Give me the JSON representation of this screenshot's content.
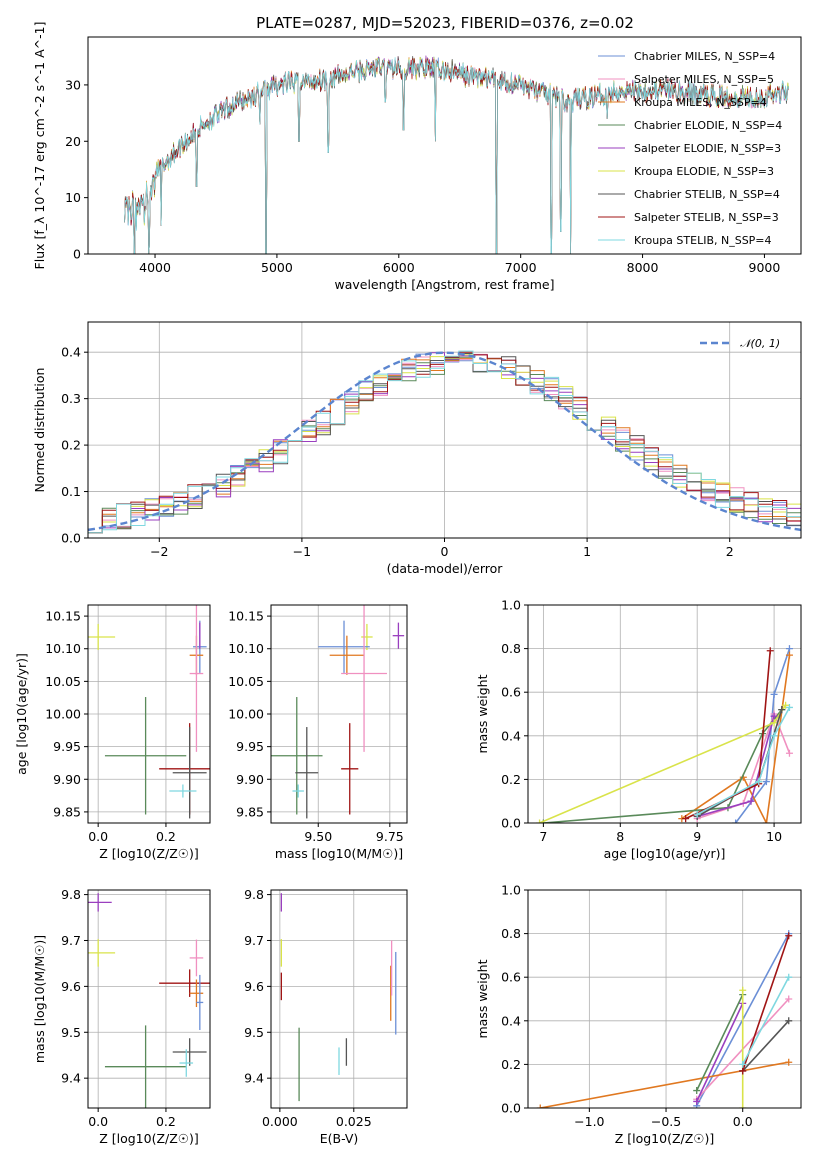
{
  "figure": {
    "title": "PLATE=0287, MJD=52023, FIBERID=0376, z=0.02"
  },
  "colors": {
    "Chabrier MILES": "#6b8fd6",
    "Salpeter MILES": "#f090c0",
    "Kroupa MILES": "#e07820",
    "Chabrier ELODIE": "#5a8a5a",
    "Salpeter ELODIE": "#9a3fbf",
    "Kroupa ELODIE": "#d9e34a",
    "Chabrier STELIB": "#555555",
    "Salpeter STELIB": "#a01515",
    "Kroupa STELIB": "#7fd8e0"
  },
  "chart_data": [
    {
      "id": "spectrum",
      "type": "line",
      "xlabel": "wavelength [Angstrom, rest frame]",
      "ylabel": "Flux [f_λ 10^-17 erg cm^-2 s^-1 A^-1]",
      "xlim": [
        3450,
        9300
      ],
      "ylim": [
        0,
        38.5
      ],
      "xticks": [
        4000,
        5000,
        6000,
        7000,
        8000,
        9000
      ],
      "yticks": [
        0,
        10,
        20,
        30
      ],
      "grid": false,
      "legend_position": "right",
      "legend": [
        "Chabrier MILES, N_SSP=4",
        "Salpeter MILES, N_SSP=5",
        "Kroupa MILES, N_SSP=4",
        "Chabrier ELODIE, N_SSP=4",
        "Salpeter ELODIE, N_SSP=3",
        "Kroupa ELODIE, N_SSP=3",
        "Chabrier STELIB, N_SSP=4",
        "Salpeter STELIB, N_SSP=3",
        "Kroupa STELIB, N_SSP=4"
      ],
      "continuum": [
        [
          3750,
          10
        ],
        [
          3900,
          10.5
        ],
        [
          4000,
          14
        ],
        [
          4200,
          19
        ],
        [
          4400,
          23
        ],
        [
          4600,
          26
        ],
        [
          4800,
          28
        ],
        [
          5000,
          30
        ],
        [
          5200,
          30.5
        ],
        [
          5400,
          31
        ],
        [
          5600,
          32
        ],
        [
          5800,
          33
        ],
        [
          6000,
          33
        ],
        [
          6200,
          33
        ],
        [
          6400,
          32.5
        ],
        [
          6600,
          31.5
        ],
        [
          6800,
          31
        ],
        [
          7000,
          30
        ],
        [
          7200,
          28.5
        ],
        [
          7400,
          27
        ],
        [
          7600,
          28
        ],
        [
          7800,
          29
        ],
        [
          8000,
          29
        ],
        [
          8200,
          29
        ],
        [
          8400,
          28.5
        ],
        [
          8600,
          28
        ],
        [
          8800,
          28
        ],
        [
          9000,
          28
        ],
        [
          9200,
          29
        ]
      ],
      "dips": [
        [
          3830,
          0
        ],
        [
          3950,
          2
        ],
        [
          4050,
          5
        ],
        [
          4340,
          12
        ],
        [
          4860,
          23
        ],
        [
          4910,
          0
        ],
        [
          5180,
          20
        ],
        [
          5420,
          18
        ],
        [
          5890,
          27
        ],
        [
          6040,
          22
        ],
        [
          6300,
          20
        ],
        [
          6800,
          0
        ],
        [
          7250,
          0
        ],
        [
          7330,
          4
        ],
        [
          7410,
          0
        ],
        [
          7710,
          24
        ]
      ]
    },
    {
      "id": "residuals",
      "type": "step",
      "xlabel": "(data-model)/error",
      "ylabel": "Normed distribution",
      "xlim": [
        -2.5,
        2.5
      ],
      "ylim": [
        0,
        0.465
      ],
      "xticks": [
        -2,
        -1,
        0,
        1,
        2
      ],
      "yticks": [
        0.0,
        0.1,
        0.2,
        0.3,
        0.4
      ],
      "grid": true,
      "legend_position": "top-right",
      "legend": [
        "𝒩(0, 1)"
      ],
      "reference": {
        "mu": 0,
        "sigma": 1,
        "color": "#5b85cf"
      }
    },
    {
      "id": "age-vs-Z",
      "type": "errorbar",
      "xlabel": "Z [log10(Z/Z☉)]",
      "ylabel": "age [log10(age/yr)]",
      "xlim": [
        -0.03,
        0.33
      ],
      "ylim": [
        9.833,
        10.167
      ],
      "xticks": [
        0.0,
        0.2
      ],
      "yticks": [
        9.85,
        9.9,
        9.95,
        10.0,
        10.05,
        10.1,
        10.15
      ],
      "grid": true,
      "points": [
        {
          "model": "Kroupa ELODIE",
          "x": 0.0,
          "xerr": 0.05,
          "y": 10.118,
          "yerr": 0.02
        },
        {
          "model": "Chabrier ELODIE",
          "x": 0.14,
          "xerr": 0.12,
          "y": 9.936,
          "yerr": 0.09
        },
        {
          "model": "Salpeter STELIB",
          "x": 0.27,
          "xerr": 0.09,
          "y": 9.916,
          "yerr": 0.07
        },
        {
          "model": "Chabrier STELIB",
          "x": 0.27,
          "xerr": 0.05,
          "y": 9.91,
          "yerr": 0.07
        },
        {
          "model": "Kroupa STELIB",
          "x": 0.25,
          "xerr": 0.04,
          "y": 9.882,
          "yerr": 0.01
        },
        {
          "model": "Chabrier MILES",
          "x": 0.3,
          "xerr": 0.02,
          "y": 10.103,
          "yerr": 0.04
        },
        {
          "model": "Kroupa MILES",
          "x": 0.29,
          "xerr": 0.02,
          "y": 10.09,
          "yerr": 0.03
        },
        {
          "model": "Salpeter MILES",
          "x": 0.29,
          "xerr": 0.02,
          "y": 10.062,
          "yerr": 0.12
        },
        {
          "model": "Salpeter ELODIE",
          "x": 0.3,
          "xerr": 0.0,
          "y": 10.12,
          "yerr": 0.02
        }
      ]
    },
    {
      "id": "age-vs-mass",
      "type": "errorbar",
      "xlabel": "mass [log10(M/M☉)]",
      "ylabel": "",
      "xlim": [
        9.335,
        9.81
      ],
      "ylim": [
        9.833,
        10.167
      ],
      "xticks": [
        9.5,
        9.75
      ],
      "yticks": [
        9.85,
        9.9,
        9.95,
        10.0,
        10.05,
        10.1,
        10.15
      ],
      "grid": true,
      "points": [
        {
          "model": "Kroupa ELODIE",
          "x": 9.67,
          "xerr": 0.02,
          "y": 10.118,
          "yerr": 0.02
        },
        {
          "model": "Chabrier ELODIE",
          "x": 9.425,
          "xerr": 0.09,
          "y": 9.936,
          "yerr": 0.09
        },
        {
          "model": "Salpeter STELIB",
          "x": 9.61,
          "xerr": 0.03,
          "y": 9.916,
          "yerr": 0.07
        },
        {
          "model": "Chabrier STELIB",
          "x": 9.46,
          "xerr": 0.04,
          "y": 9.91,
          "yerr": 0.07
        },
        {
          "model": "Kroupa STELIB",
          "x": 9.43,
          "xerr": 0.02,
          "y": 9.882,
          "yerr": 0.01
        },
        {
          "model": "Chabrier MILES",
          "x": 9.59,
          "xerr": 0.09,
          "y": 10.103,
          "yerr": 0.04
        },
        {
          "model": "Kroupa MILES",
          "x": 9.6,
          "xerr": 0.06,
          "y": 10.09,
          "yerr": 0.03
        },
        {
          "model": "Salpeter MILES",
          "x": 9.66,
          "xerr": 0.08,
          "y": 10.062,
          "yerr": 0.12
        },
        {
          "model": "Salpeter ELODIE",
          "x": 9.78,
          "xerr": 0.02,
          "y": 10.12,
          "yerr": 0.02
        }
      ]
    },
    {
      "id": "mass-weight-vs-age",
      "type": "line",
      "xlabel": "age [log10(age/yr)]",
      "ylabel": "mass weight",
      "xlim": [
        6.8,
        10.35
      ],
      "ylim": [
        0,
        1.0
      ],
      "xticks": [
        7,
        8,
        9,
        10
      ],
      "yticks": [
        0.0,
        0.2,
        0.4,
        0.6,
        0.8,
        1.0
      ],
      "grid": true,
      "series": [
        {
          "model": "Chabrier MILES",
          "points": [
            [
              9.5,
              0
            ],
            [
              9.9,
              0.19
            ],
            [
              10.0,
              0.59
            ],
            [
              10.2,
              0.8
            ]
          ]
        },
        {
          "model": "Salpeter MILES",
          "points": [
            [
              9.0,
              0.02
            ],
            [
              9.6,
              0.09
            ],
            [
              10.0,
              0.5
            ],
            [
              10.2,
              0.32
            ]
          ]
        },
        {
          "model": "Kroupa MILES",
          "points": [
            [
              8.8,
              0.02
            ],
            [
              9.6,
              0.21
            ],
            [
              9.9,
              0.0
            ],
            [
              10.2,
              0.77
            ]
          ]
        },
        {
          "model": "Chabrier ELODIE",
          "points": [
            [
              7.0,
              0.0
            ],
            [
              9.4,
              0.07
            ],
            [
              9.85,
              0.41
            ],
            [
              10.1,
              0.52
            ]
          ]
        },
        {
          "model": "Salpeter ELODIE",
          "points": [
            [
              9.0,
              0.03
            ],
            [
              9.7,
              0.1
            ],
            [
              10.0,
              0.49
            ]
          ]
        },
        {
          "model": "Kroupa ELODIE",
          "points": [
            [
              6.95,
              0.0
            ],
            [
              10.0,
              0.46
            ],
            [
              10.15,
              0.54
            ]
          ]
        },
        {
          "model": "Chabrier STELIB",
          "points": [
            [
              9.0,
              0.03
            ],
            [
              9.8,
              0.19
            ],
            [
              10.1,
              0.52
            ]
          ]
        },
        {
          "model": "Salpeter STELIB",
          "points": [
            [
              8.85,
              0.02
            ],
            [
              9.8,
              0.18
            ],
            [
              9.95,
              0.79
            ]
          ]
        },
        {
          "model": "Kroupa STELIB",
          "points": [
            [
              9.0,
              0.04
            ],
            [
              9.8,
              0.19
            ],
            [
              10.0,
              0.4
            ],
            [
              10.2,
              0.53
            ]
          ]
        }
      ]
    },
    {
      "id": "mass-vs-Z",
      "type": "errorbar",
      "xlabel": "Z [log10(Z/Z☉)]",
      "ylabel": "mass [log10(M/M☉)]",
      "xlim": [
        -0.03,
        0.33
      ],
      "ylim": [
        9.335,
        9.81
      ],
      "xticks": [
        0.0,
        0.2
      ],
      "yticks": [
        9.4,
        9.5,
        9.6,
        9.7,
        9.8
      ],
      "grid": true,
      "points": [
        {
          "model": "Salpeter ELODIE",
          "x": 0.0,
          "xerr": 0.04,
          "y": 9.783,
          "yerr": 0.02
        },
        {
          "model": "Kroupa ELODIE",
          "x": 0.0,
          "xerr": 0.05,
          "y": 9.673,
          "yerr": 0.03
        },
        {
          "model": "Chabrier ELODIE",
          "x": 0.14,
          "xerr": 0.12,
          "y": 9.425,
          "yerr": 0.09
        },
        {
          "model": "Salpeter STELIB",
          "x": 0.27,
          "xerr": 0.09,
          "y": 9.607,
          "yerr": 0.03
        },
        {
          "model": "Chabrier STELIB",
          "x": 0.27,
          "xerr": 0.05,
          "y": 9.457,
          "yerr": 0.03
        },
        {
          "model": "Kroupa STELIB",
          "x": 0.26,
          "xerr": 0.02,
          "y": 9.433,
          "yerr": 0.03
        },
        {
          "model": "Salpeter MILES",
          "x": 0.29,
          "xerr": 0.02,
          "y": 9.662,
          "yerr": 0.04
        },
        {
          "model": "Kroupa MILES",
          "x": 0.29,
          "xerr": 0.02,
          "y": 9.585,
          "yerr": 0.03
        },
        {
          "model": "Chabrier MILES",
          "x": 0.3,
          "xerr": 0.01,
          "y": 9.565,
          "yerr": 0.06
        }
      ]
    },
    {
      "id": "mass-vs-EBV",
      "type": "errorbar",
      "xlabel": "E(B-V)",
      "ylabel": "",
      "xlim": [
        -0.003,
        0.043
      ],
      "ylim": [
        9.335,
        9.81
      ],
      "xticks": [
        0.0,
        0.025
      ],
      "xticklabels": [
        "0.000",
        "0.025"
      ],
      "yticks": [
        9.4,
        9.5,
        9.6,
        9.7,
        9.8
      ],
      "grid": true,
      "points": [
        {
          "model": "Salpeter ELODIE",
          "x": 0.0005,
          "xerr": 0.0,
          "y": 9.783,
          "yerr": 0.02
        },
        {
          "model": "Kroupa ELODIE",
          "x": 0.0005,
          "xerr": 0.0,
          "y": 9.673,
          "yerr": 0.03
        },
        {
          "model": "Salpeter STELIB",
          "x": 0.0005,
          "xerr": 0.0,
          "y": 9.6,
          "yerr": 0.03
        },
        {
          "model": "Chabrier ELODIE",
          "x": 0.0065,
          "xerr": 0.0,
          "y": 9.43,
          "yerr": 0.08
        },
        {
          "model": "Kroupa STELIB",
          "x": 0.02,
          "xerr": 0.0,
          "y": 9.437,
          "yerr": 0.03
        },
        {
          "model": "Chabrier STELIB",
          "x": 0.0225,
          "xerr": 0.0,
          "y": 9.457,
          "yerr": 0.03
        },
        {
          "model": "Kroupa MILES",
          "x": 0.0375,
          "xerr": 0.0,
          "y": 9.585,
          "yerr": 0.06
        },
        {
          "model": "Salpeter MILES",
          "x": 0.0378,
          "xerr": 0.0,
          "y": 9.64,
          "yerr": 0.06
        },
        {
          "model": "Chabrier MILES",
          "x": 0.0392,
          "xerr": 0.0,
          "y": 9.585,
          "yerr": 0.09
        }
      ]
    },
    {
      "id": "mass-weight-vs-Z",
      "type": "line",
      "xlabel": "Z [log10(Z/Z☉)]",
      "ylabel": "mass weight",
      "xlim": [
        -1.4,
        0.38
      ],
      "ylim": [
        0,
        1.0
      ],
      "xticks": [
        -1.0,
        -0.5,
        0.0
      ],
      "yticks": [
        0.0,
        0.2,
        0.4,
        0.6,
        0.8,
        1.0
      ],
      "grid": true,
      "series": [
        {
          "model": "Chabrier MILES",
          "points": [
            [
              -0.3,
              0.01
            ],
            [
              0.3,
              0.8
            ]
          ]
        },
        {
          "model": "Salpeter MILES",
          "points": [
            [
              -0.3,
              0.04
            ],
            [
              0.3,
              0.5
            ]
          ]
        },
        {
          "model": "Kroupa MILES",
          "points": [
            [
              -1.32,
              0.0
            ],
            [
              0.3,
              0.21
            ]
          ]
        },
        {
          "model": "Chabrier ELODIE",
          "points": [
            [
              -0.3,
              0.08
            ],
            [
              0.0,
              0.52
            ]
          ]
        },
        {
          "model": "Salpeter ELODIE",
          "points": [
            [
              -0.3,
              0.03
            ],
            [
              0.0,
              0.48
            ]
          ]
        },
        {
          "model": "Kroupa ELODIE",
          "points": [
            [
              0.0,
              0.0
            ],
            [
              0.0,
              0.54
            ]
          ]
        },
        {
          "model": "Chabrier STELIB",
          "points": [
            [
              0.0,
              0.17
            ],
            [
              0.3,
              0.4
            ]
          ]
        },
        {
          "model": "Salpeter STELIB",
          "points": [
            [
              0.0,
              0.17
            ],
            [
              0.3,
              0.79
            ]
          ]
        },
        {
          "model": "Kroupa STELIB",
          "points": [
            [
              0.0,
              0.2
            ],
            [
              0.3,
              0.6
            ]
          ]
        }
      ]
    }
  ]
}
